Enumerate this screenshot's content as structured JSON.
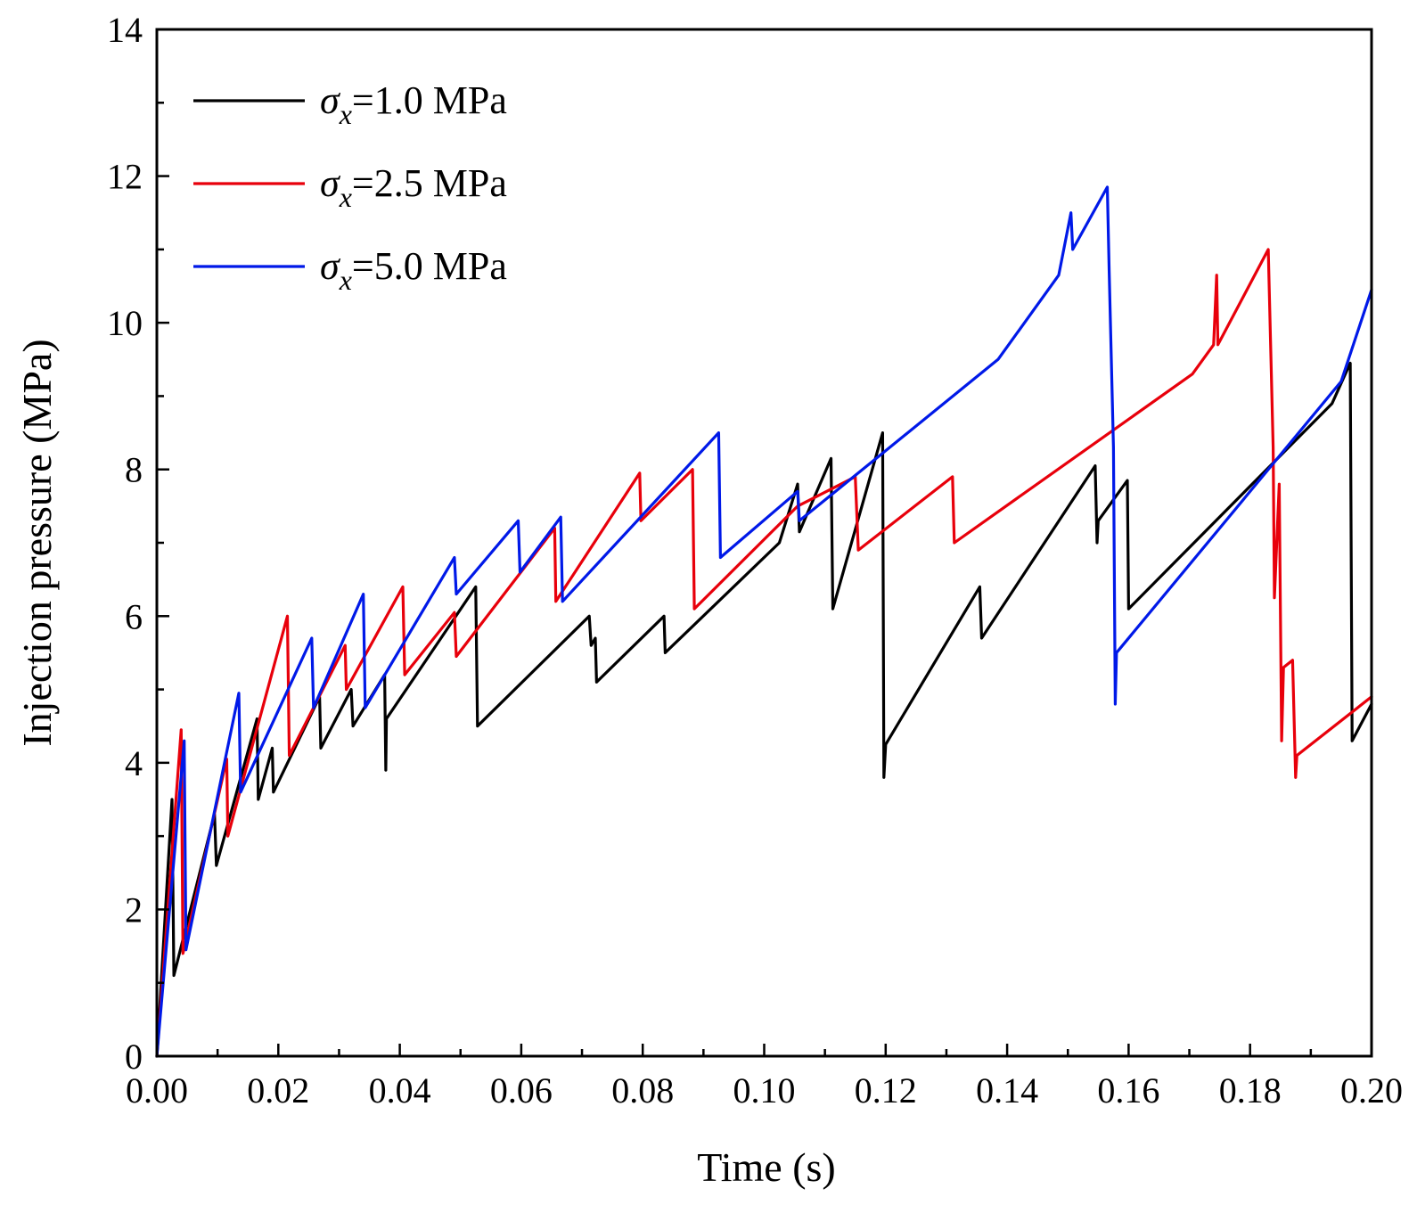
{
  "chart_data": {
    "type": "line",
    "title": "",
    "xlabel": "Time (s)",
    "ylabel": "Injection pressure (MPa)",
    "xlim": [
      0,
      0.2
    ],
    "ylim": [
      0,
      14
    ],
    "xticks": [
      0,
      0.02,
      0.04,
      0.06,
      0.08,
      0.1,
      0.12,
      0.14,
      0.16,
      0.18,
      0.2
    ],
    "xtick_labels": [
      "0.00",
      "0.02",
      "0.04",
      "0.06",
      "0.08",
      "0.10",
      "0.12",
      "0.14",
      "0.16",
      "0.18",
      "0.20"
    ],
    "yticks": [
      0,
      2,
      4,
      6,
      8,
      10,
      12,
      14
    ],
    "ytick_labels": [
      "0",
      "2",
      "4",
      "6",
      "8",
      "10",
      "12",
      "14"
    ],
    "grid": false,
    "legend_position": "top-left",
    "series": [
      {
        "name": "σx=1.0 MPa",
        "legend_symbol": "σ",
        "legend_sub": "x",
        "legend_rest": "=1.0 MPa",
        "color": "#000000",
        "points": [
          [
            0,
            0
          ],
          [
            0.0025,
            3.5
          ],
          [
            0.0028,
            1.1
          ],
          [
            0.0095,
            3.3
          ],
          [
            0.0098,
            2.6
          ],
          [
            0.0165,
            4.6
          ],
          [
            0.0167,
            3.5
          ],
          [
            0.019,
            4.2
          ],
          [
            0.0192,
            3.6
          ],
          [
            0.0268,
            4.9
          ],
          [
            0.027,
            4.2
          ],
          [
            0.032,
            5.0
          ],
          [
            0.0323,
            4.5
          ],
          [
            0.0375,
            5.2
          ],
          [
            0.0377,
            3.9
          ],
          [
            0.0378,
            4.6
          ],
          [
            0.0525,
            6.4
          ],
          [
            0.0528,
            4.5
          ],
          [
            0.0712,
            6.0
          ],
          [
            0.0715,
            5.6
          ],
          [
            0.0722,
            5.7
          ],
          [
            0.0724,
            5.1
          ],
          [
            0.0835,
            6.0
          ],
          [
            0.0837,
            5.5
          ],
          [
            0.1025,
            7.0
          ],
          [
            0.1055,
            7.8
          ],
          [
            0.1058,
            7.15
          ],
          [
            0.111,
            8.15
          ],
          [
            0.1113,
            6.1
          ],
          [
            0.1195,
            8.5
          ],
          [
            0.1197,
            3.8
          ],
          [
            0.12,
            4.25
          ],
          [
            0.1355,
            6.4
          ],
          [
            0.1358,
            5.7
          ],
          [
            0.1545,
            8.05
          ],
          [
            0.1548,
            7.0
          ],
          [
            0.155,
            7.3
          ],
          [
            0.1598,
            7.85
          ],
          [
            0.16,
            6.1
          ],
          [
            0.1935,
            8.9
          ],
          [
            0.1965,
            9.45
          ],
          [
            0.1968,
            4.3
          ],
          [
            0.2,
            4.8
          ]
        ]
      },
      {
        "name": "σx=2.5 MPa",
        "legend_symbol": "σ",
        "legend_sub": "x",
        "legend_rest": "=2.5 MPa",
        "color": "#e8000b",
        "points": [
          [
            0,
            0
          ],
          [
            0.004,
            4.45
          ],
          [
            0.0043,
            1.4
          ],
          [
            0.0115,
            4.05
          ],
          [
            0.0117,
            3.0
          ],
          [
            0.0215,
            6.0
          ],
          [
            0.0218,
            4.1
          ],
          [
            0.031,
            5.6
          ],
          [
            0.0312,
            5.0
          ],
          [
            0.0405,
            6.4
          ],
          [
            0.0408,
            5.2
          ],
          [
            0.049,
            6.05
          ],
          [
            0.0493,
            5.45
          ],
          [
            0.0655,
            7.2
          ],
          [
            0.0657,
            6.2
          ],
          [
            0.0795,
            7.95
          ],
          [
            0.0797,
            7.3
          ],
          [
            0.0882,
            8.0
          ],
          [
            0.0885,
            6.1
          ],
          [
            0.1055,
            7.5
          ],
          [
            0.115,
            7.9
          ],
          [
            0.1155,
            6.9
          ],
          [
            0.131,
            7.9
          ],
          [
            0.1313,
            7.0
          ],
          [
            0.1705,
            9.3
          ],
          [
            0.174,
            9.7
          ],
          [
            0.1745,
            10.65
          ],
          [
            0.1747,
            9.7
          ],
          [
            0.183,
            11.0
          ],
          [
            0.1838,
            8.3
          ],
          [
            0.184,
            6.25
          ],
          [
            0.1848,
            7.8
          ],
          [
            0.1852,
            4.3
          ],
          [
            0.1855,
            5.3
          ],
          [
            0.187,
            5.4
          ],
          [
            0.1875,
            3.8
          ],
          [
            0.1877,
            4.1
          ],
          [
            0.2,
            4.9
          ]
        ]
      },
      {
        "name": "σx=5.0 MPa",
        "legend_symbol": "σ",
        "legend_sub": "x",
        "legend_rest": "=5.0 MPa",
        "color": "#0019e8",
        "points": [
          [
            0,
            0
          ],
          [
            0.0045,
            4.3
          ],
          [
            0.0048,
            1.45
          ],
          [
            0.0135,
            4.95
          ],
          [
            0.0138,
            3.6
          ],
          [
            0.0255,
            5.7
          ],
          [
            0.0258,
            4.75
          ],
          [
            0.034,
            6.3
          ],
          [
            0.0343,
            4.75
          ],
          [
            0.049,
            6.8
          ],
          [
            0.0493,
            6.3
          ],
          [
            0.0595,
            7.3
          ],
          [
            0.0598,
            6.6
          ],
          [
            0.0665,
            7.35
          ],
          [
            0.0668,
            6.2
          ],
          [
            0.0925,
            8.5
          ],
          [
            0.0928,
            6.8
          ],
          [
            0.1055,
            7.7
          ],
          [
            0.1058,
            7.3
          ],
          [
            0.1385,
            9.5
          ],
          [
            0.1485,
            10.65
          ],
          [
            0.1505,
            11.5
          ],
          [
            0.1508,
            11.0
          ],
          [
            0.1565,
            11.85
          ],
          [
            0.1568,
            10.7
          ],
          [
            0.1575,
            8.3
          ],
          [
            0.1578,
            4.8
          ],
          [
            0.158,
            5.5
          ],
          [
            0.1585,
            5.55
          ],
          [
            0.159,
            5.6
          ],
          [
            0.195,
            9.2
          ],
          [
            0.2,
            10.45
          ]
        ]
      }
    ]
  }
}
